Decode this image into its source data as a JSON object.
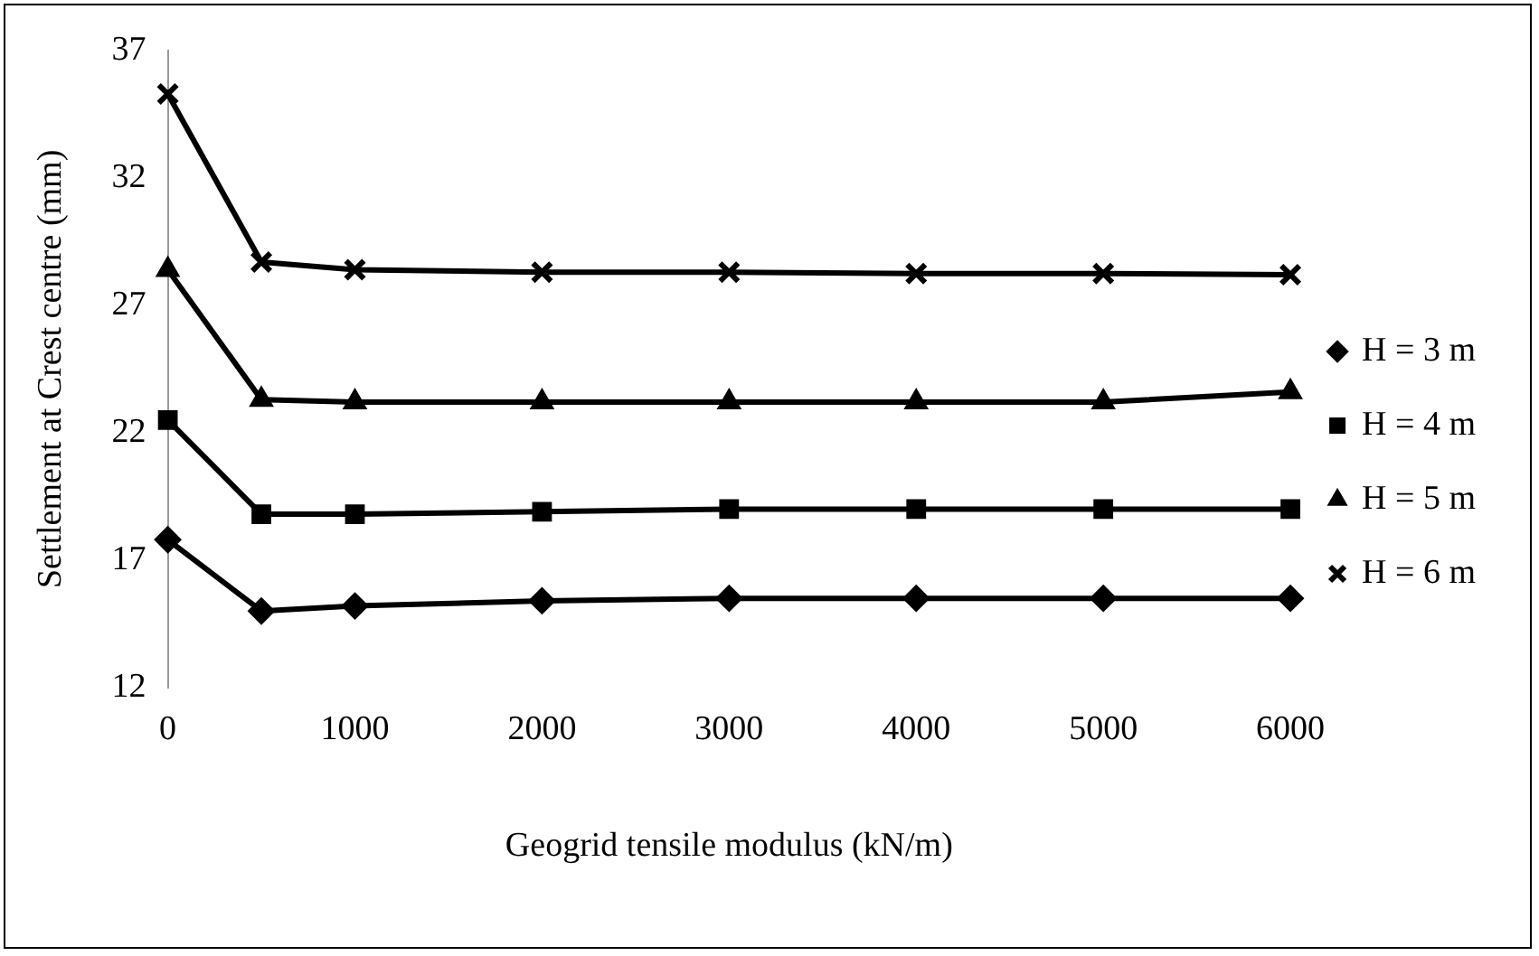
{
  "chart_data": {
    "type": "line",
    "xlabel": "Geogrid tensile modulus (kN/m)",
    "ylabel": "Settlement at Crest centre (mm)",
    "x": [
      0,
      500,
      1000,
      2000,
      3000,
      4000,
      5000,
      6000
    ],
    "xlim": [
      0,
      6000
    ],
    "xticks": [
      0,
      1000,
      2000,
      3000,
      4000,
      5000,
      6000
    ],
    "ylim": [
      12,
      37
    ],
    "yticks": [
      12,
      17,
      22,
      27,
      32,
      37
    ],
    "grid": false,
    "legend": "right",
    "series": [
      {
        "name": "H = 3 m",
        "color": "#000000",
        "marker": "diamond",
        "values": [
          17.8,
          15.0,
          15.2,
          15.4,
          15.5,
          15.5,
          15.5,
          15.5
        ]
      },
      {
        "name": "H = 4 m",
        "color": "#000000",
        "marker": "square",
        "values": [
          22.5,
          18.8,
          18.8,
          18.9,
          19.0,
          19.0,
          19.0,
          19.0
        ]
      },
      {
        "name": "H = 5 m",
        "color": "#000000",
        "marker": "triangle",
        "values": [
          28.4,
          23.3,
          23.2,
          23.2,
          23.2,
          23.2,
          23.2,
          23.6
        ]
      },
      {
        "name": "H = 6 m",
        "color": "#000000",
        "marker": "cross",
        "values": [
          35.3,
          28.7,
          28.4,
          28.3,
          28.3,
          28.25,
          28.25,
          28.2
        ]
      }
    ]
  }
}
